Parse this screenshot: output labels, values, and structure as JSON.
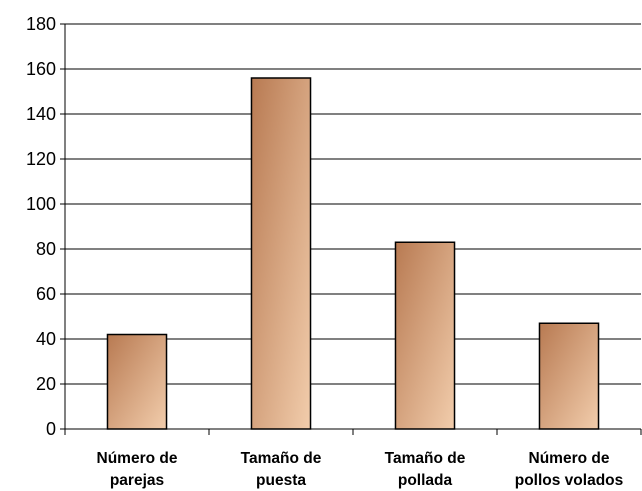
{
  "chart_data": {
    "type": "bar",
    "categories": [
      [
        "Número de",
        "parejas"
      ],
      [
        "Tamaño de",
        "puesta"
      ],
      [
        "Tamaño de",
        "pollada"
      ],
      [
        "Número de",
        "pollos volados"
      ]
    ],
    "values": [
      42,
      156,
      83,
      47
    ],
    "ylim": [
      0,
      180
    ],
    "yticks": [
      0,
      20,
      40,
      60,
      80,
      100,
      120,
      140,
      160,
      180
    ],
    "grid": true,
    "legend": "none",
    "colors": {
      "bar_dark": "#b87a52",
      "bar_light": "#f2cdac",
      "bar_stroke": "#000000",
      "grid": "#000000",
      "axis": "#000000"
    }
  }
}
